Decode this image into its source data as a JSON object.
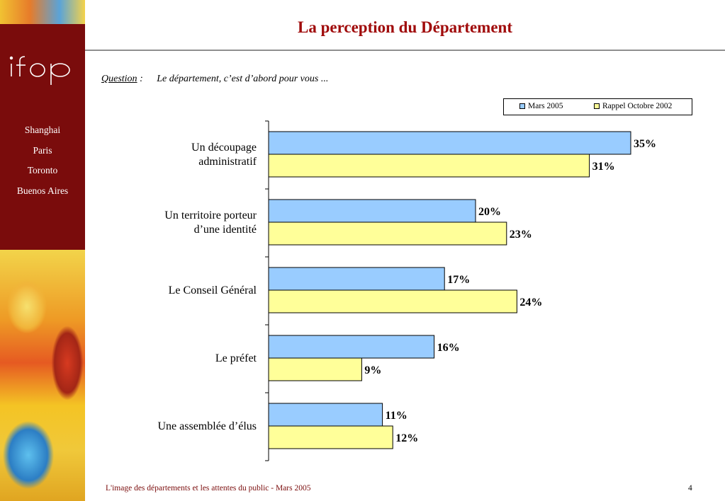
{
  "slide": {
    "title": "La perception du Département",
    "question_label": "Question",
    "question_colon": ":",
    "question_text": "Le département, c’est d’abord pour vous ...",
    "footer": "L'image des départements et les attentes du public - Mars 2005",
    "page_number": "4"
  },
  "sidebar": {
    "logo": "ifop",
    "cities": [
      "Shanghai",
      "Paris",
      "Toronto",
      "Buenos Aires"
    ],
    "colors": {
      "panel": "#7a0c0c"
    }
  },
  "chart_data": {
    "type": "bar",
    "orientation": "horizontal",
    "categories": [
      [
        "Un découpage",
        "administratif"
      ],
      [
        "Un territoire porteur",
        "d’une identité"
      ],
      [
        "Le Conseil Général"
      ],
      [
        "Le préfet"
      ],
      [
        "Une assemblée d’élus"
      ]
    ],
    "series": [
      {
        "name": "Mars 2005",
        "color": "#99ccff",
        "values": [
          35,
          20,
          17,
          16,
          11
        ]
      },
      {
        "name": "Rappel Octobre 2002",
        "color": "#ffff99",
        "values": [
          31,
          23,
          24,
          9,
          12
        ]
      }
    ],
    "value_suffix": "%",
    "xlim": [
      0,
      35
    ],
    "grid": false,
    "legend": "top-right"
  }
}
